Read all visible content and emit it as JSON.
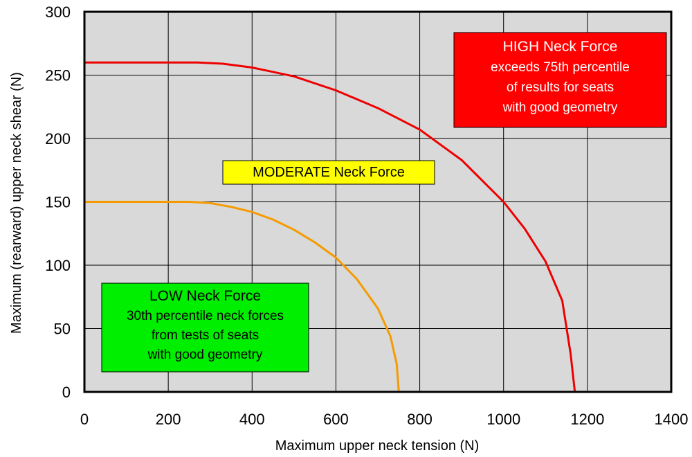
{
  "chart_data": {
    "type": "line",
    "xlabel": "Maximum upper neck tension (N)",
    "ylabel": "Maximum (rearward) upper neck shear (N)",
    "xlim": [
      0,
      1400
    ],
    "ylim": [
      0,
      300
    ],
    "x_ticks": [
      0,
      200,
      400,
      600,
      800,
      1000,
      1200,
      1400
    ],
    "y_ticks": [
      0,
      50,
      100,
      150,
      200,
      250,
      300
    ],
    "grid": true,
    "plot_background": "#d9d9d9",
    "series": [
      {
        "color": "#f59a00",
        "points": [
          [
            0,
            150
          ],
          [
            250,
            150
          ],
          [
            300,
            149
          ],
          [
            350,
            146
          ],
          [
            400,
            142
          ],
          [
            450,
            136
          ],
          [
            500,
            128
          ],
          [
            550,
            118
          ],
          [
            600,
            106
          ],
          [
            650,
            89
          ],
          [
            700,
            66
          ],
          [
            730,
            44
          ],
          [
            745,
            22
          ],
          [
            750,
            0
          ]
        ]
      },
      {
        "color": "#ee0000",
        "points": [
          [
            0,
            260
          ],
          [
            270,
            260
          ],
          [
            330,
            259
          ],
          [
            400,
            256
          ],
          [
            500,
            249
          ],
          [
            600,
            238
          ],
          [
            700,
            224
          ],
          [
            800,
            207
          ],
          [
            900,
            183
          ],
          [
            1000,
            150
          ],
          [
            1050,
            129
          ],
          [
            1100,
            103
          ],
          [
            1140,
            72
          ],
          [
            1160,
            30
          ],
          [
            1170,
            0
          ]
        ]
      }
    ],
    "annotations": [
      {
        "id": "high",
        "lines": [
          "HIGH Neck Force",
          "exceeds 75th percentile",
          "of results for seats",
          "with good geometry"
        ],
        "background": "#ff0000",
        "text_color": "#ffffff"
      },
      {
        "id": "moderate",
        "lines": [
          "MODERATE Neck Force"
        ],
        "background": "#ffff00",
        "text_color": "#000000"
      },
      {
        "id": "low",
        "lines": [
          "LOW Neck Force",
          "30th percentile neck forces",
          "from tests of seats",
          "with good geometry"
        ],
        "background": "#00ee00",
        "text_color": "#000000"
      }
    ]
  }
}
